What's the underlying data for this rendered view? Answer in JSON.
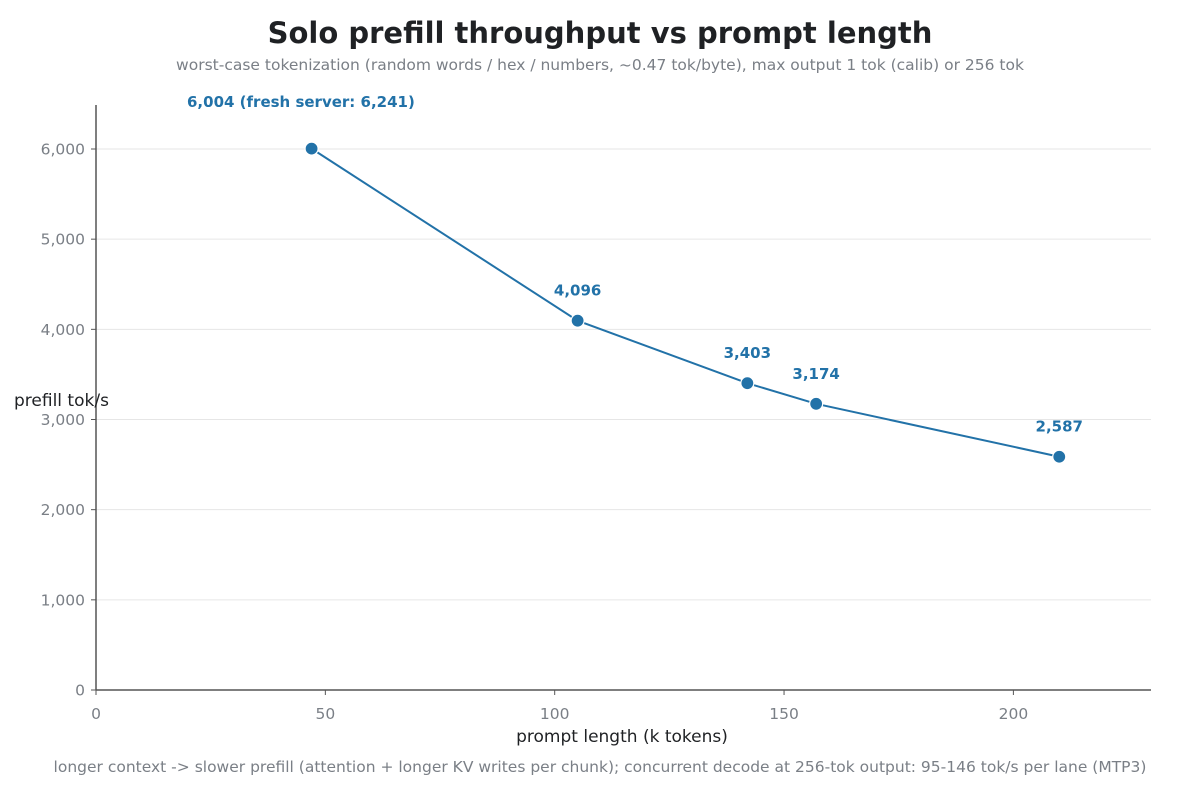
{
  "chart_data": {
    "type": "line",
    "title": "Solo prefill throughput vs prompt length",
    "subtitle": "worst-case tokenization (random words / hex / numbers, ~0.47 tok/byte), max output 1 tok (calib) or 256 tok",
    "xlabel": "prompt length (k tokens)",
    "ylabel": "prefill tok/s",
    "footnote": "longer context -> slower prefill (attention + longer KV writes per chunk); concurrent decode at 256-tok output: 95-146 tok/s per lane (MTP3)",
    "xlim": [
      0,
      230
    ],
    "ylim": [
      0,
      6500
    ],
    "x_ticks": [
      0,
      50,
      100,
      150,
      200
    ],
    "x_tick_labels": [
      "0",
      "50",
      "100",
      "150",
      "200"
    ],
    "y_ticks": [
      0,
      1000,
      2000,
      3000,
      4000,
      5000,
      6000
    ],
    "y_tick_labels": [
      "0",
      "1,000",
      "2,000",
      "3,000",
      "4,000",
      "5,000",
      "6,000"
    ],
    "grid": "horizontal",
    "series": [
      {
        "x": [
          47,
          105,
          142,
          157,
          210
        ],
        "y": [
          6004,
          4096,
          3403,
          3174,
          2587
        ],
        "labels": [
          "6,004  (fresh server: 6,241)",
          "4,096",
          "3,403",
          "3,174",
          "2,587"
        ]
      }
    ],
    "colors": {
      "series": "#2272a8",
      "title": "#1f2124",
      "subtitle": "#7a7f86",
      "axis": "#555555",
      "grid": "#e6e6e6",
      "tick_label": "#7a7f86",
      "axis_label": "#1f2124"
    }
  }
}
